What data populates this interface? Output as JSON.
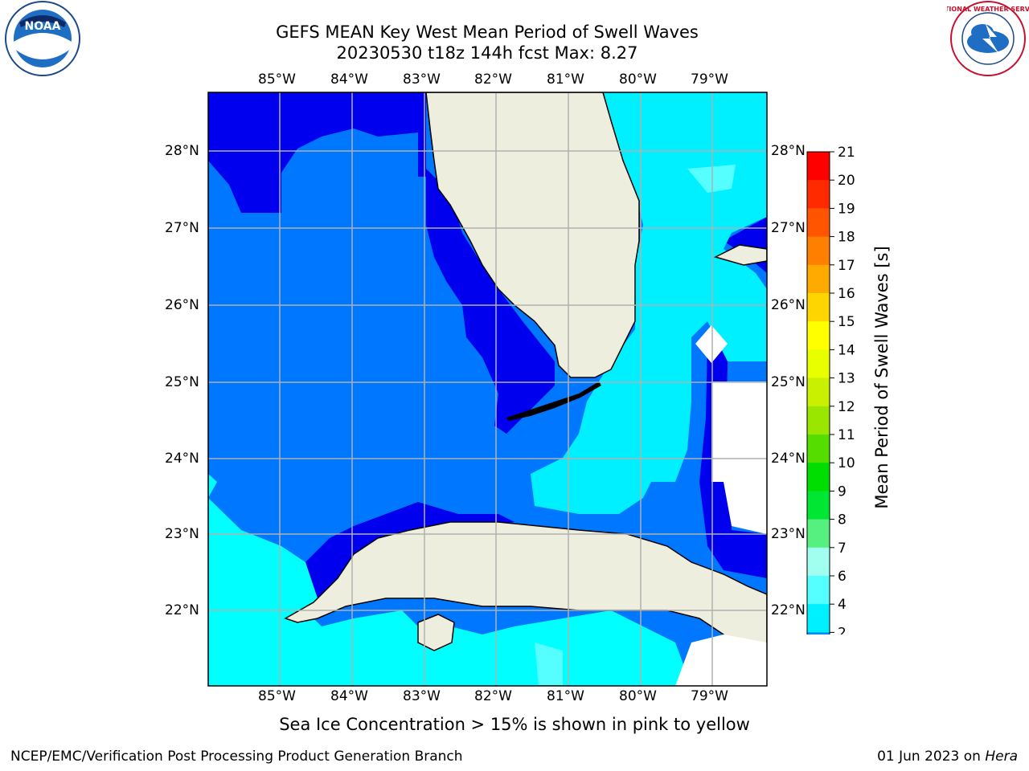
{
  "title": {
    "line1": "GEFS MEAN Key West Mean Period of Swell Waves",
    "line2": "20230530 t18z 144h fcst   Max: 8.27"
  },
  "axes": {
    "lon_ticks": [
      "85°W",
      "84°W",
      "83°W",
      "82°W",
      "81°W",
      "80°W",
      "79°W"
    ],
    "lat_ticks": [
      "28°N",
      "27°N",
      "26°N",
      "25°N",
      "24°N",
      "23°N",
      "22°N"
    ]
  },
  "colorbar": {
    "label": "Mean Period of Swell Waves [s]",
    "ticks": [
      "21",
      "20",
      "19",
      "18",
      "17",
      "16",
      "15",
      "14",
      "13",
      "12",
      "11",
      "10",
      "9",
      "8",
      "7",
      "6",
      "4",
      "2"
    ],
    "colors": [
      "#ff0000",
      "#ff2a00",
      "#ff5500",
      "#ff8000",
      "#ffaa00",
      "#ffd500",
      "#ffff00",
      "#e8ff00",
      "#c8f000",
      "#9be600",
      "#55dd00",
      "#00dd00",
      "#00e633",
      "#55f080",
      "#a0ffee",
      "#55ffff",
      "#00f0ff",
      "#0088ff",
      "#0000ee"
    ]
  },
  "map_colors": {
    "deep_blue": "#0000ee",
    "mid_blue": "#0077ff",
    "cyan": "#00ffff",
    "light_cyan": "#55ffff",
    "land": "#eeeedf"
  },
  "note": "Sea Ice Concentration > 15% is shown in pink to yellow",
  "footer": {
    "left": "NCEP/EMC/Verification Post Processing Product Generation Branch",
    "right_prefix": "01 Jun 2023 on ",
    "right_host": "Hera"
  },
  "logos": {
    "noaa_text": "NOAA",
    "nws_text": "NATIONAL WEATHER SERVICE"
  }
}
